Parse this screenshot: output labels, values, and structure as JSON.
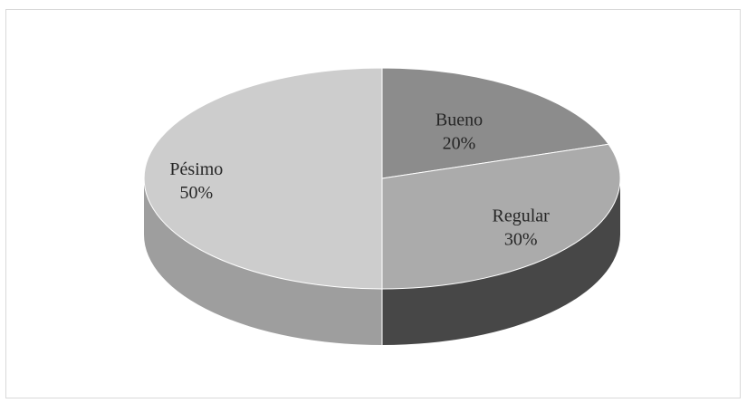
{
  "chart_data": {
    "type": "pie",
    "title": "",
    "style": "3d",
    "slices": [
      {
        "label": "Bueno",
        "value": 20,
        "value_label": "20%",
        "color": "#8c8c8c",
        "side_color": "#5f5f5f"
      },
      {
        "label": "Regular",
        "value": 30,
        "value_label": "30%",
        "color": "#ababab",
        "side_color": "#474747"
      },
      {
        "label": "Pésimo",
        "value": 50,
        "value_label": "50%",
        "color": "#cdcdcd",
        "side_color": "#9e9e9e"
      }
    ]
  }
}
